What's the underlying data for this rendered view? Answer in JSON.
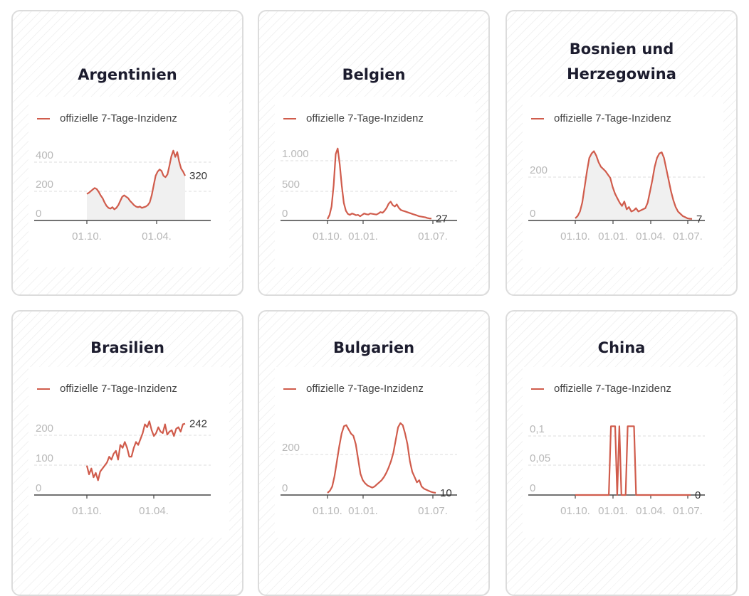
{
  "colors": {
    "line": "#d05c4c",
    "fill": "#f0f0f0",
    "grid": "#dddddd",
    "tick": "#b8b8b8",
    "axis": "#444444"
  },
  "chart_data": [
    {
      "type": "area",
      "title": "Argentinien",
      "legend": "offizielle 7-Tage-Inzidenz",
      "last_label": "320",
      "xticks": [
        "01.10.",
        "01.04."
      ],
      "yticks": [
        "400",
        "200",
        "0"
      ],
      "ylim": [
        0,
        560
      ],
      "values": [
        190,
        198,
        210,
        222,
        232,
        225,
        205,
        180,
        160,
        130,
        105,
        90,
        85,
        95,
        80,
        90,
        110,
        140,
        170,
        180,
        170,
        160,
        140,
        125,
        110,
        100,
        95,
        100,
        90,
        95,
        100,
        110,
        130,
        180,
        250,
        320,
        350,
        365,
        355,
        320,
        310,
        330,
        390,
        460,
        500,
        455,
        490,
        420,
        370,
        350,
        320
      ]
    },
    {
      "type": "line",
      "title": "Belgien",
      "legend": "offizielle 7-Tage-Inzidenz",
      "last_label": "27",
      "xticks": [
        "01.10.",
        "01.01.",
        "01.07."
      ],
      "yticks": [
        "1.000",
        "500",
        "0"
      ],
      "ylim": [
        0,
        1120
      ],
      "values": [
        20,
        80,
        200,
        500,
        950,
        1030,
        800,
        500,
        250,
        140,
        95,
        80,
        100,
        90,
        75,
        80,
        60,
        80,
        100,
        90,
        85,
        100,
        95,
        90,
        85,
        100,
        120,
        110,
        140,
        180,
        240,
        270,
        220,
        200,
        230,
        180,
        150,
        140,
        130,
        120,
        110,
        100,
        90,
        80,
        70,
        60,
        55,
        50,
        45,
        35,
        30,
        27
      ]
    },
    {
      "type": "area",
      "title": "Bosnien und Herzegowina",
      "legend": "offizielle 7-Tage-Inzidenz",
      "last_label": "7",
      "xticks": [
        "01.10.",
        "01.01.",
        "01.04.",
        "01.07."
      ],
      "yticks": [
        "200",
        "0"
      ],
      "ylim": [
        0,
        350
      ],
      "values": [
        10,
        20,
        40,
        80,
        150,
        220,
        280,
        300,
        310,
        290,
        260,
        240,
        230,
        220,
        205,
        190,
        150,
        120,
        100,
        80,
        65,
        85,
        50,
        60,
        40,
        45,
        55,
        40,
        45,
        50,
        55,
        80,
        130,
        180,
        240,
        280,
        300,
        305,
        280,
        230,
        180,
        130,
        90,
        60,
        40,
        30,
        20,
        15,
        10,
        8,
        7
      ]
    },
    {
      "type": "line",
      "title": "Brasilien",
      "legend": "offizielle 7-Tage-Inzidenz",
      "last_label": "242",
      "xticks": [
        "01.10.",
        "01.04."
      ],
      "yticks": [
        "200",
        "100",
        "0"
      ],
      "ylim": [
        0,
        280
      ],
      "values": [
        100,
        70,
        90,
        60,
        75,
        50,
        80,
        90,
        100,
        110,
        130,
        120,
        140,
        150,
        120,
        170,
        160,
        180,
        160,
        130,
        130,
        160,
        180,
        170,
        190,
        210,
        240,
        230,
        250,
        220,
        200,
        210,
        230,
        215,
        210,
        240,
        205,
        215,
        220,
        200,
        225,
        230,
        215,
        240,
        242
      ]
    },
    {
      "type": "line",
      "title": "Bulgarien",
      "legend": "offizielle 7-Tage-Inzidenz",
      "last_label": "10",
      "xticks": [
        "01.10.",
        "01.01.",
        "01.07."
      ],
      "yticks": [
        "200",
        "0"
      ],
      "ylim": [
        0,
        390
      ],
      "values": [
        10,
        20,
        40,
        90,
        160,
        230,
        290,
        325,
        330,
        310,
        290,
        280,
        240,
        170,
        100,
        70,
        55,
        45,
        40,
        35,
        40,
        50,
        60,
        70,
        85,
        105,
        130,
        160,
        200,
        260,
        320,
        340,
        330,
        290,
        240,
        160,
        110,
        85,
        60,
        70,
        40,
        30,
        25,
        20,
        15,
        12,
        10
      ]
    },
    {
      "type": "line",
      "title": "China",
      "legend": "offizielle 7-Tage-Inzidenz",
      "last_label": "0",
      "xticks": [
        "01.10.",
        "01.01.",
        "01.04.",
        "01.07."
      ],
      "yticks": [
        "0,1",
        "0,05",
        "0"
      ],
      "ylim": [
        0,
        0.12
      ],
      "values": [
        0,
        0,
        0,
        0,
        0,
        0,
        0,
        0,
        0,
        0,
        0,
        0,
        0,
        0,
        0,
        0,
        0,
        0.1,
        0.1,
        0.1,
        0,
        0.1,
        0,
        0,
        0,
        0.1,
        0.1,
        0.1,
        0.1,
        0,
        0,
        0,
        0,
        0,
        0,
        0,
        0,
        0,
        0,
        0,
        0,
        0,
        0,
        0,
        0,
        0,
        0,
        0,
        0,
        0,
        0,
        0,
        0,
        0,
        0,
        0
      ]
    }
  ]
}
